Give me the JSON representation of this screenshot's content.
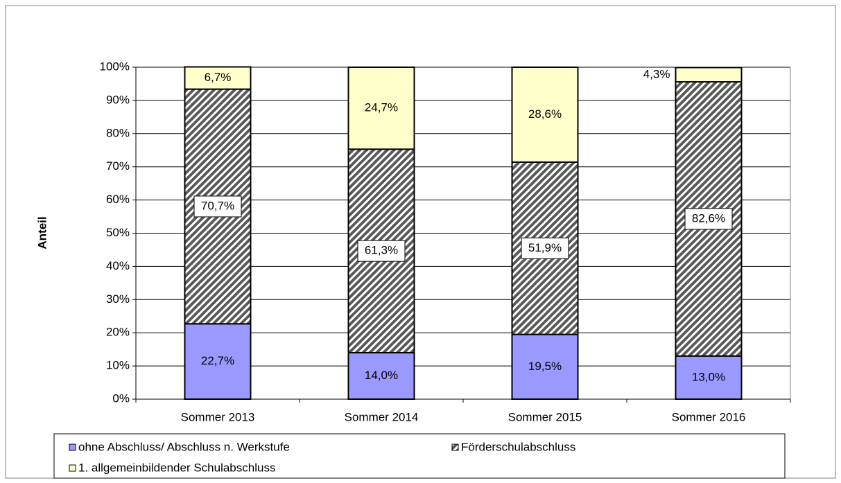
{
  "chart_data": {
    "type": "stacked_bar",
    "y_label": "Anteil",
    "categories": [
      "Sommer 2013",
      "Sommer 2014",
      "Sommer 2015",
      "Sommer 2016"
    ],
    "series": [
      {
        "name": "ohne Abschluss/ Abschluss n. Werkstufe",
        "color": "#9999ff",
        "values": [
          22.7,
          14.0,
          19.5,
          13.0
        ],
        "value_labels": [
          "22,7%",
          "14,0%",
          "19,5%",
          "13,0%"
        ]
      },
      {
        "name": "Förderschulabschluss",
        "color": "#595959",
        "hatch": true,
        "values": [
          70.7,
          61.3,
          51.9,
          82.6
        ],
        "value_labels": [
          "70,7%",
          "61,3%",
          "51,9%",
          "82,6%"
        ]
      },
      {
        "name": "1. allgemeinbildender Schulabschluss",
        "color": "#ffffcc",
        "values": [
          6.7,
          24.7,
          28.6,
          4.3
        ],
        "value_labels": [
          "6,7%",
          "24,7%",
          "28,6%",
          "4,3%"
        ]
      }
    ],
    "ylim": [
      0,
      100
    ],
    "yticks": [
      {
        "value": 0,
        "label": "0%"
      },
      {
        "value": 10,
        "label": "10%"
      },
      {
        "value": 20,
        "label": "20%"
      },
      {
        "value": 30,
        "label": "30%"
      },
      {
        "value": 40,
        "label": "40%"
      },
      {
        "value": 50,
        "label": "50%"
      },
      {
        "value": 60,
        "label": "60%"
      },
      {
        "value": 70,
        "label": "70%"
      },
      {
        "value": 80,
        "label": "80%"
      },
      {
        "value": 90,
        "label": "90%"
      },
      {
        "value": 100,
        "label": "100%"
      }
    ],
    "grid": true
  }
}
